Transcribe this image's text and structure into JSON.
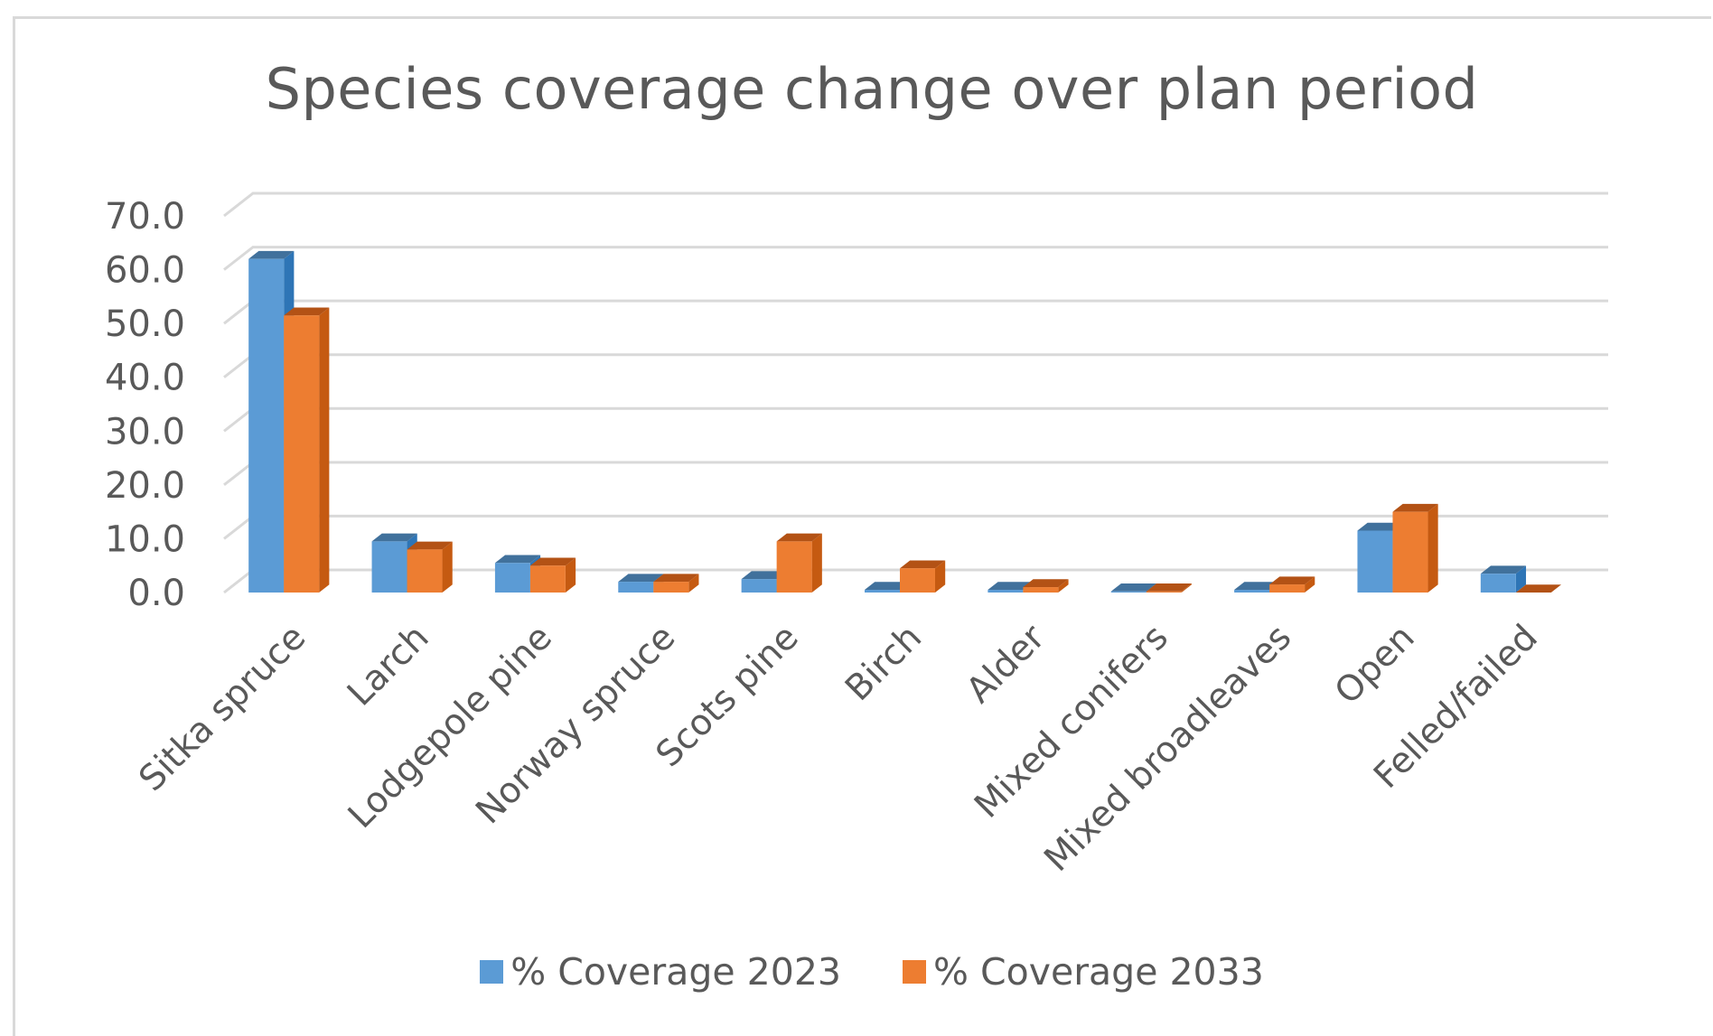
{
  "chart_data": {
    "type": "bar",
    "title": "Species coverage change over plan period",
    "categories": [
      "Sitka spruce",
      "Larch",
      "Lodgepole pine",
      "Norway spruce",
      "Scots pine",
      "Birch",
      "Alder",
      "Mixed conifers",
      "Mixed broadleaves",
      "Open",
      "Felled/failed"
    ],
    "series": [
      {
        "name": "% Coverage 2023",
        "values": [
          62.0,
          9.5,
          5.5,
          2.0,
          2.5,
          0.5,
          0.5,
          0.2,
          0.5,
          11.5,
          3.5
        ]
      },
      {
        "name": "% Coverage 2033",
        "values": [
          51.5,
          8.0,
          5.0,
          2.0,
          9.5,
          4.5,
          1.0,
          0.2,
          1.5,
          15.0,
          0.0
        ]
      }
    ],
    "y_ticks": [
      "0.0",
      "10.0",
      "20.0",
      "30.0",
      "40.0",
      "50.0",
      "60.0",
      "70.0"
    ],
    "ylim": [
      0,
      70
    ],
    "xlabel": "",
    "ylabel": "",
    "grid": true,
    "legend_position": "bottom",
    "colors": {
      "series_1_front": "#5b9bd5",
      "series_1_side": "#2e75b6",
      "series_1_top": "#41719c",
      "series_2_front": "#ed7d31",
      "series_2_side": "#c55a11",
      "series_2_top": "#b35215",
      "grid": "#d9d9d9",
      "text": "#595959"
    }
  }
}
